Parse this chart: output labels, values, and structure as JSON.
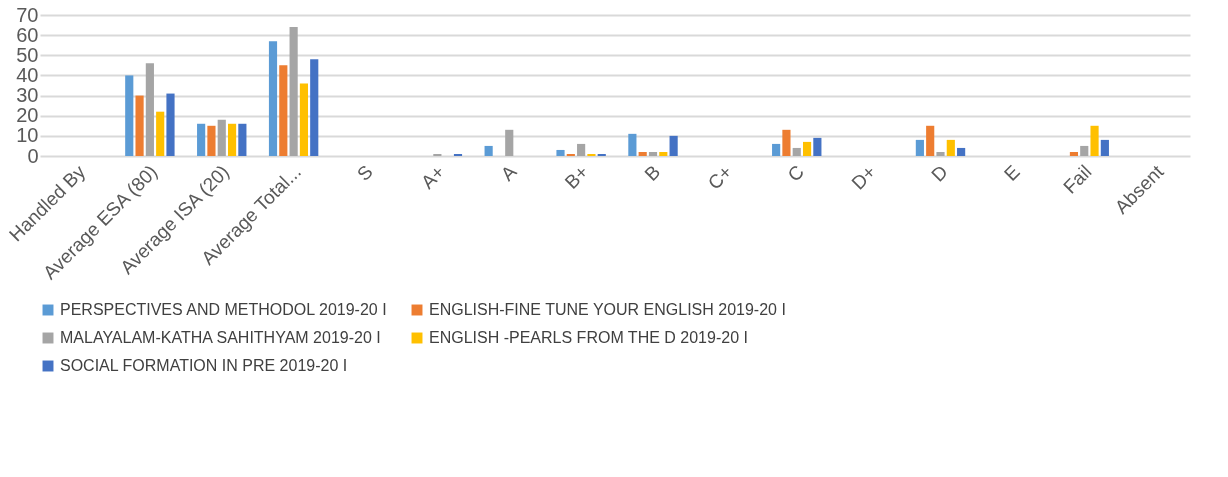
{
  "chart_data": {
    "type": "bar",
    "categories": [
      "Handled By",
      "Average ESA (80)",
      "Average ISA (20)",
      "Average Total...",
      "S",
      "A+",
      "A",
      "B+",
      "B",
      "C+",
      "C",
      "D+",
      "D",
      "E",
      "Fail",
      "Absent"
    ],
    "series": [
      {
        "name": "PERSPECTIVES AND METHODOL 2019-20 I",
        "color": "#5b9bd5",
        "values": [
          0,
          40,
          16,
          57,
          0,
          0,
          5,
          3,
          11,
          0,
          6,
          0,
          8,
          0,
          0,
          0
        ]
      },
      {
        "name": "ENGLISH-FINE TUNE YOUR ENGLISH 2019-20 I",
        "color": "#ed7d31",
        "values": [
          0,
          30,
          15,
          45,
          0,
          0,
          0,
          1,
          2,
          0,
          13,
          0,
          15,
          0,
          2,
          0
        ]
      },
      {
        "name": "MALAYALAM-KATHA SAHITHYAM 2019-20 I",
        "color": "#a5a5a5",
        "values": [
          0,
          46,
          18,
          64,
          0,
          1,
          13,
          6,
          2,
          0,
          4,
          0,
          2,
          0,
          5,
          0
        ]
      },
      {
        "name": "ENGLISH -PEARLS FROM THE D 2019-20 I",
        "color": "#ffc000",
        "values": [
          0,
          22,
          16,
          36,
          0,
          0,
          0,
          1,
          2,
          0,
          7,
          0,
          8,
          0,
          15,
          0
        ]
      },
      {
        "name": "SOCIAL FORMATION IN PRE 2019-20 I",
        "color": "#4472c4",
        "values": [
          0,
          31,
          16,
          48,
          0,
          1,
          0,
          1,
          10,
          0,
          9,
          0,
          4,
          0,
          8,
          0
        ]
      }
    ],
    "ylim": [
      0,
      70
    ],
    "yticks": [
      0,
      10,
      20,
      30,
      40,
      50,
      60,
      70
    ],
    "grid": "y",
    "legend": "bottom"
  }
}
